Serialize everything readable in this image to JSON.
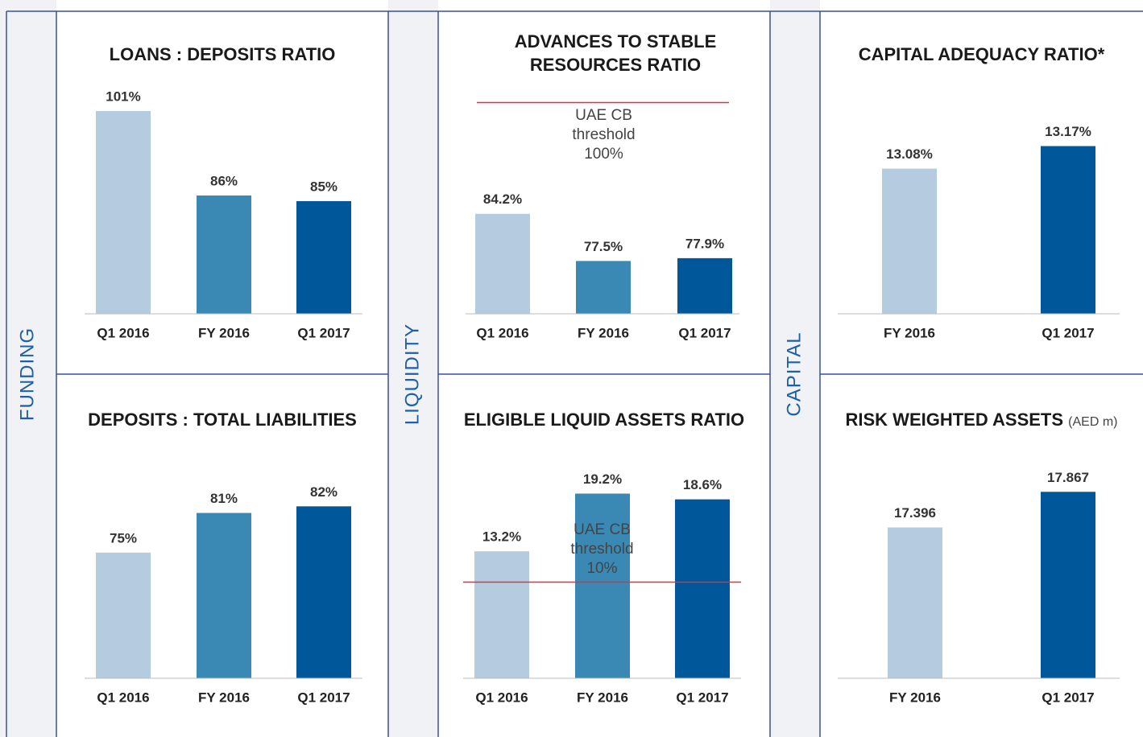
{
  "sections": [
    "FUNDING",
    "LIQUIDITY",
    "CAPITAL"
  ],
  "chart_data": [
    {
      "type": "bar",
      "title": "LOANS : DEPOSITS RATIO",
      "categories": [
        "Q1 2016",
        "FY 2016",
        "Q1 2017"
      ],
      "values": [
        101,
        86,
        85
      ],
      "value_labels": [
        "101%",
        "86%",
        "85%"
      ],
      "colors": [
        "#b5cce0",
        "#3a89b4",
        "#00579a"
      ],
      "ylim": [
        65,
        105
      ]
    },
    {
      "type": "bar",
      "title": "ADVANCES TO STABLE RESOURCES RATIO",
      "categories": [
        "Q1 2016",
        "FY 2016",
        "Q1 2017"
      ],
      "values": [
        84.2,
        77.5,
        77.9
      ],
      "value_labels": [
        "84.2%",
        "77.5%",
        "77.9%"
      ],
      "colors": [
        "#b5cce0",
        "#3a89b4",
        "#00579a"
      ],
      "ylim": [
        70,
        102
      ],
      "threshold": {
        "value": 100,
        "label": "UAE CB threshold 100%"
      }
    },
    {
      "type": "bar",
      "title": "CAPITAL ADEQUACY RATIO*",
      "categories": [
        "FY 2016",
        "Q1 2017"
      ],
      "values": [
        13.08,
        13.17
      ],
      "value_labels": [
        "13.08%",
        "13.17%"
      ],
      "colors": [
        "#b5cce0",
        "#00579a"
      ],
      "ylim": [
        12.5,
        13.4
      ]
    },
    {
      "type": "bar",
      "title": "DEPOSITS : TOTAL LIABILITIES",
      "categories": [
        "Q1 2016",
        "FY 2016",
        "Q1 2017"
      ],
      "values": [
        75,
        81,
        82
      ],
      "value_labels": [
        "75%",
        "81%",
        "82%"
      ],
      "colors": [
        "#b5cce0",
        "#3a89b4",
        "#00579a"
      ],
      "ylim": [
        56,
        88
      ]
    },
    {
      "type": "bar",
      "title": "ELIGIBLE LIQUID ASSETS RATIO",
      "categories": [
        "Q1 2016",
        "FY 2016",
        "Q1 2017"
      ],
      "values": [
        13.2,
        19.2,
        18.6
      ],
      "value_labels": [
        "13.2%",
        "19.2%",
        "18.6%"
      ],
      "colors": [
        "#b5cce0",
        "#3a89b4",
        "#00579a"
      ],
      "ylim": [
        0,
        22
      ],
      "threshold": {
        "value": 10,
        "label": "UAE CB threshold 10%"
      }
    },
    {
      "type": "bar",
      "title": "RISK WEIGHTED ASSETS",
      "unit": "(AED m)",
      "categories": [
        "FY 2016",
        "Q1 2017"
      ],
      "values": [
        17.396,
        17.867
      ],
      "colors": [
        "#b5cce0",
        "#00579a"
      ],
      "ylim": [
        15.4,
        18.2
      ]
    }
  ]
}
